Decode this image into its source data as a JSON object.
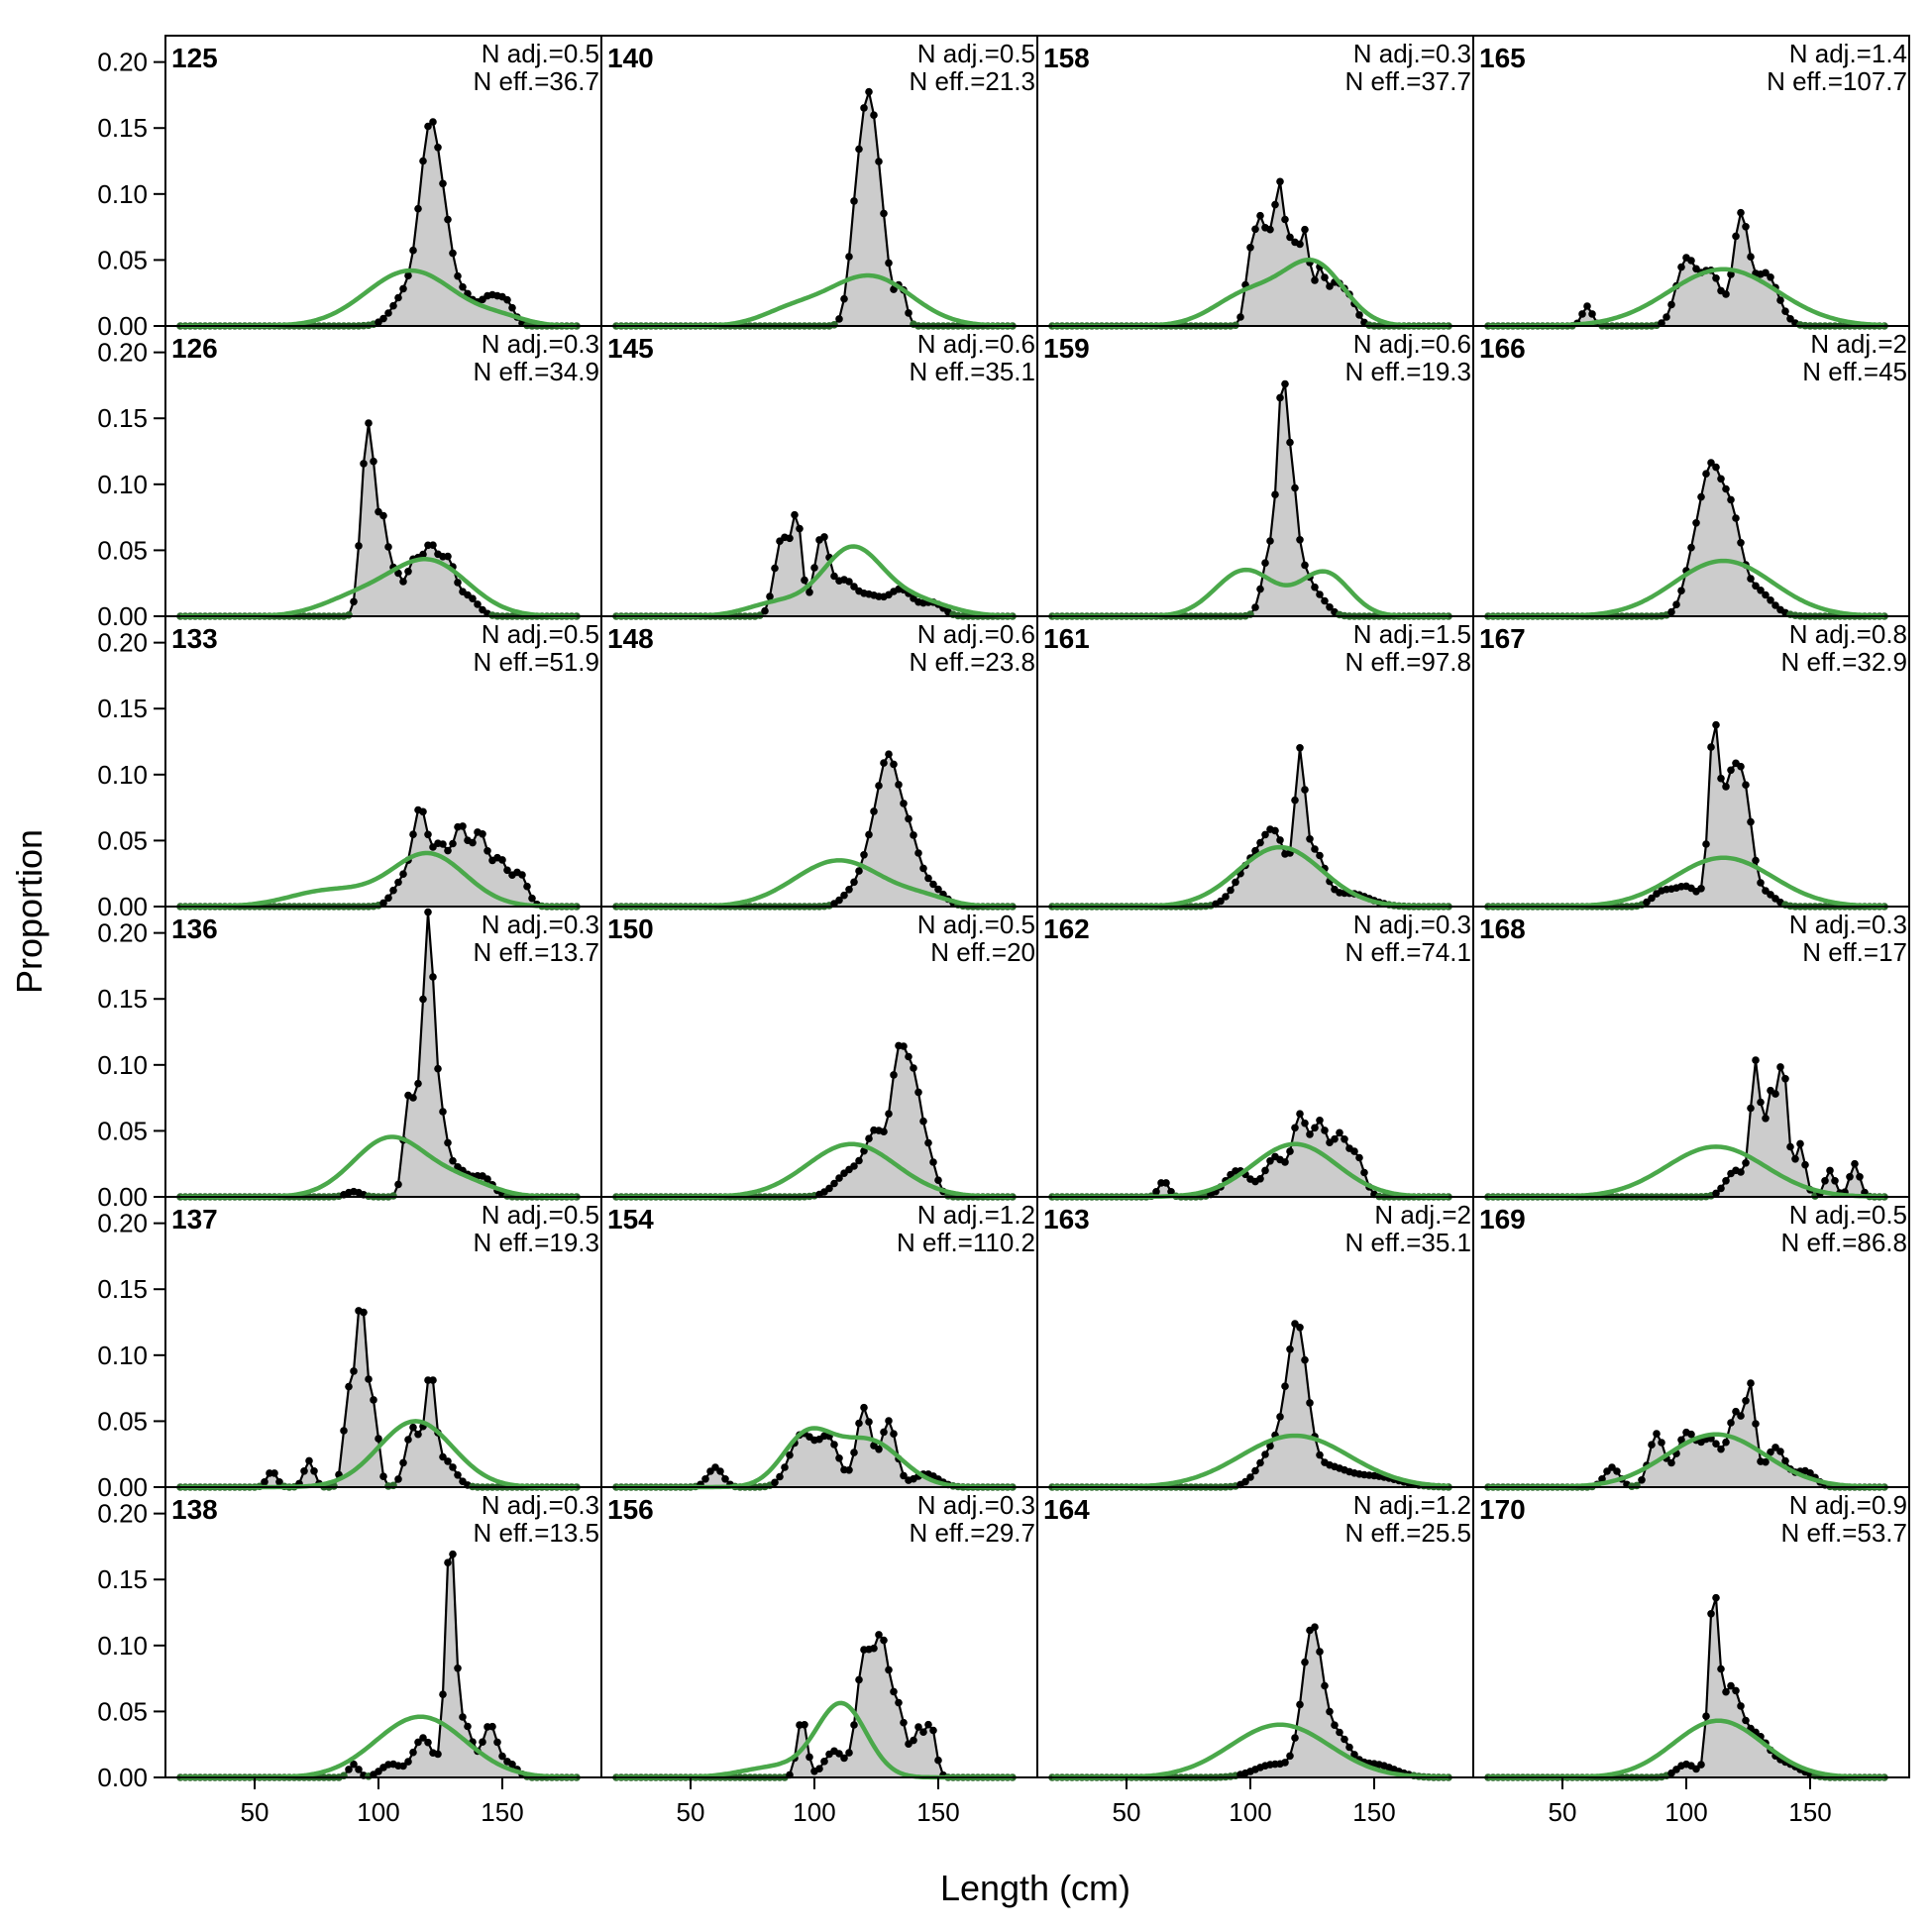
{
  "chart_data": {
    "type": "area",
    "xlabel": "Length (cm)",
    "ylabel": "Proportion",
    "xlim": [
      14,
      190
    ],
    "ylim": [
      0,
      0.22
    ],
    "x_ticks": [
      50,
      100,
      150
    ],
    "y_ticks": [
      0.0,
      0.05,
      0.1,
      0.15,
      0.2
    ],
    "y_tick_labels": [
      "0.00",
      "0.05",
      "0.10",
      "0.15",
      "0.20"
    ],
    "colors": {
      "observed_fill": "#cccccc",
      "observed_line": "#000000",
      "expected": "#4aa84a",
      "zero_line": "#bbbbbb"
    },
    "grid": false,
    "layout": {
      "columns": 4,
      "rows": 6
    },
    "panels": [
      {
        "id": "125",
        "n_adj": "N adj.=0.5",
        "n_eff": "N eff.=36.7",
        "peaks": [
          [
            113,
            0.03,
            6
          ],
          [
            118,
            0.06,
            3
          ],
          [
            122,
            0.105,
            3
          ],
          [
            127,
            0.06,
            3
          ],
          [
            134,
            0.025,
            4
          ],
          [
            145,
            0.022,
            4
          ],
          [
            152,
            0.015,
            3
          ]
        ],
        "exp": [
          [
            113,
            0.042,
            18
          ],
          [
            150,
            0.005,
            10
          ]
        ]
      },
      {
        "id": "140",
        "n_adj": "N adj.=0.5",
        "n_eff": "N eff.=21.3",
        "peaks": [
          [
            117,
            0.08,
            3
          ],
          [
            122,
            0.14,
            3
          ],
          [
            127,
            0.07,
            3
          ],
          [
            135,
            0.03,
            2
          ]
        ],
        "exp": [
          [
            90,
            0.01,
            12
          ],
          [
            122,
            0.038,
            17
          ]
        ]
      },
      {
        "id": "158",
        "n_adj": "N adj.=0.3",
        "n_eff": "N eff.=37.7",
        "peaks": [
          [
            100,
            0.05,
            2
          ],
          [
            104,
            0.07,
            2
          ],
          [
            108,
            0.05,
            2
          ],
          [
            112,
            0.1,
            2
          ],
          [
            117,
            0.06,
            2
          ],
          [
            122,
            0.07,
            2
          ],
          [
            128,
            0.04,
            2
          ],
          [
            134,
            0.03,
            3
          ],
          [
            140,
            0.02,
            3
          ]
        ],
        "exp": [
          [
            100,
            0.025,
            14
          ],
          [
            126,
            0.045,
            12
          ]
        ]
      },
      {
        "id": "165",
        "n_adj": "N adj.=1.4",
        "n_eff": "N eff.=107.7",
        "peaks": [
          [
            60,
            0.015,
            2
          ],
          [
            100,
            0.05,
            4
          ],
          [
            110,
            0.04,
            4
          ],
          [
            122,
            0.08,
            3
          ],
          [
            132,
            0.04,
            5
          ]
        ],
        "exp": [
          [
            115,
            0.043,
            22
          ]
        ]
      },
      {
        "id": "126",
        "n_adj": "N adj.=0.3",
        "n_eff": "N eff.=34.9",
        "peaks": [
          [
            94,
            0.08,
            2
          ],
          [
            97,
            0.11,
            2
          ],
          [
            102,
            0.07,
            2
          ],
          [
            107,
            0.03,
            2
          ],
          [
            114,
            0.04,
            3
          ],
          [
            121,
            0.05,
            3
          ],
          [
            128,
            0.04,
            3
          ],
          [
            136,
            0.015,
            4
          ]
        ],
        "exp": [
          [
            90,
            0.012,
            14
          ],
          [
            120,
            0.042,
            16
          ]
        ]
      },
      {
        "id": "145",
        "n_adj": "N adj.=0.6",
        "n_eff": "N eff.=35.1",
        "peaks": [
          [
            87,
            0.06,
            3
          ],
          [
            93,
            0.07,
            2
          ],
          [
            103,
            0.06,
            3
          ],
          [
            112,
            0.025,
            4
          ],
          [
            122,
            0.015,
            5
          ],
          [
            135,
            0.02,
            5
          ],
          [
            148,
            0.01,
            4
          ]
        ],
        "exp": [
          [
            85,
            0.01,
            12
          ],
          [
            115,
            0.05,
            12
          ],
          [
            140,
            0.012,
            14
          ]
        ]
      },
      {
        "id": "159",
        "n_adj": "N adj.=0.6",
        "n_eff": "N eff.=19.3",
        "peaks": [
          [
            108,
            0.05,
            3
          ],
          [
            113,
            0.16,
            2
          ],
          [
            117,
            0.08,
            2
          ],
          [
            121,
            0.03,
            3
          ],
          [
            127,
            0.015,
            4
          ]
        ],
        "exp": [
          [
            98,
            0.035,
            12
          ],
          [
            130,
            0.033,
            10
          ]
        ]
      },
      {
        "id": "166",
        "n_adj": "N adj.=2",
        "n_eff": "N eff.=45",
        "peaks": [
          [
            103,
            0.04,
            4
          ],
          [
            110,
            0.098,
            4
          ],
          [
            118,
            0.07,
            4
          ],
          [
            128,
            0.02,
            6
          ]
        ],
        "exp": [
          [
            115,
            0.042,
            20
          ]
        ]
      },
      {
        "id": "133",
        "n_adj": "N adj.=0.5",
        "n_eff": "N eff.=51.9",
        "peaks": [
          [
            110,
            0.02,
            4
          ],
          [
            117,
            0.07,
            3
          ],
          [
            125,
            0.045,
            3
          ],
          [
            133,
            0.06,
            3
          ],
          [
            141,
            0.055,
            3
          ],
          [
            149,
            0.035,
            3
          ],
          [
            157,
            0.025,
            3
          ]
        ],
        "exp": [
          [
            80,
            0.012,
            16
          ],
          [
            120,
            0.04,
            15
          ]
        ]
      },
      {
        "id": "148",
        "n_adj": "N adj.=0.6",
        "n_eff": "N eff.=23.8",
        "peaks": [
          [
            115,
            0.01,
            4
          ],
          [
            123,
            0.04,
            4
          ],
          [
            130,
            0.1,
            4
          ],
          [
            138,
            0.05,
            4
          ],
          [
            147,
            0.015,
            5
          ]
        ],
        "exp": [
          [
            110,
            0.035,
            18
          ],
          [
            145,
            0.005,
            10
          ]
        ]
      },
      {
        "id": "161",
        "n_adj": "N adj.=1.5",
        "n_eff": "N eff.=97.8",
        "peaks": [
          [
            100,
            0.03,
            6
          ],
          [
            110,
            0.05,
            5
          ],
          [
            120,
            0.1,
            2
          ],
          [
            126,
            0.04,
            4
          ],
          [
            140,
            0.01,
            8
          ]
        ],
        "exp": [
          [
            112,
            0.045,
            17
          ]
        ]
      },
      {
        "id": "167",
        "n_adj": "N adj.=0.8",
        "n_eff": "N eff.=32.9",
        "peaks": [
          [
            90,
            0.01,
            4
          ],
          [
            100,
            0.015,
            5
          ],
          [
            111,
            0.12,
            2
          ],
          [
            118,
            0.095,
            4
          ],
          [
            124,
            0.06,
            3
          ],
          [
            132,
            0.01,
            4
          ]
        ],
        "exp": [
          [
            115,
            0.037,
            20
          ]
        ]
      },
      {
        "id": "136",
        "n_adj": "N adj.=0.3",
        "n_eff": "N eff.=13.7",
        "peaks": [
          [
            90,
            0.004,
            3
          ],
          [
            112,
            0.07,
            2
          ],
          [
            116,
            0.05,
            2
          ],
          [
            120,
            0.18,
            2
          ],
          [
            124,
            0.07,
            3
          ],
          [
            132,
            0.02,
            4
          ],
          [
            142,
            0.015,
            4
          ]
        ],
        "exp": [
          [
            105,
            0.045,
            15
          ],
          [
            135,
            0.01,
            12
          ]
        ]
      },
      {
        "id": "150",
        "n_adj": "N adj.=0.5",
        "n_eff": "N eff.=20",
        "peaks": [
          [
            115,
            0.02,
            6
          ],
          [
            125,
            0.045,
            4
          ],
          [
            134,
            0.1,
            3
          ],
          [
            140,
            0.08,
            3
          ],
          [
            146,
            0.03,
            3
          ]
        ],
        "exp": [
          [
            115,
            0.04,
            18
          ]
        ]
      },
      {
        "id": "162",
        "n_adj": "N adj.=0.3",
        "n_eff": "N eff.=74.1",
        "peaks": [
          [
            65,
            0.012,
            2
          ],
          [
            95,
            0.02,
            5
          ],
          [
            110,
            0.03,
            4
          ],
          [
            120,
            0.06,
            3
          ],
          [
            128,
            0.055,
            3
          ],
          [
            136,
            0.045,
            3
          ],
          [
            143,
            0.03,
            3
          ]
        ],
        "exp": [
          [
            118,
            0.04,
            17
          ]
        ]
      },
      {
        "id": "168",
        "n_adj": "N adj.=0.3",
        "n_eff": "N eff.=17",
        "peaks": [
          [
            120,
            0.02,
            4
          ],
          [
            128,
            0.1,
            2
          ],
          [
            134,
            0.075,
            2
          ],
          [
            139,
            0.1,
            2
          ],
          [
            146,
            0.04,
            2
          ],
          [
            158,
            0.02,
            2
          ],
          [
            168,
            0.025,
            2
          ]
        ],
        "exp": [
          [
            112,
            0.038,
            20
          ]
        ]
      },
      {
        "id": "137",
        "n_adj": "N adj.=0.5",
        "n_eff": "N eff.=19.3",
        "peaks": [
          [
            57,
            0.012,
            2
          ],
          [
            72,
            0.02,
            2
          ],
          [
            88,
            0.07,
            2
          ],
          [
            93,
            0.14,
            2
          ],
          [
            98,
            0.06,
            2
          ],
          [
            114,
            0.045,
            3
          ],
          [
            121,
            0.08,
            2
          ],
          [
            127,
            0.02,
            4
          ]
        ],
        "exp": [
          [
            115,
            0.05,
            15
          ]
        ]
      },
      {
        "id": "154",
        "n_adj": "N adj.=1.2",
        "n_eff": "N eff.=110.2",
        "peaks": [
          [
            60,
            0.015,
            3
          ],
          [
            95,
            0.04,
            5
          ],
          [
            106,
            0.035,
            4
          ],
          [
            120,
            0.06,
            3
          ],
          [
            130,
            0.05,
            3
          ],
          [
            145,
            0.01,
            5
          ]
        ],
        "exp": [
          [
            97,
            0.038,
            10
          ],
          [
            122,
            0.035,
            13
          ]
        ]
      },
      {
        "id": "163",
        "n_adj": "N adj.=2",
        "n_eff": "N eff.=35.1",
        "peaks": [
          [
            110,
            0.03,
            6
          ],
          [
            119,
            0.11,
            4
          ],
          [
            130,
            0.015,
            8
          ],
          [
            150,
            0.008,
            10
          ]
        ],
        "exp": [
          [
            118,
            0.039,
            22
          ]
        ]
      },
      {
        "id": "169",
        "n_adj": "N adj.=0.5",
        "n_eff": "N eff.=86.8",
        "peaks": [
          [
            70,
            0.015,
            3
          ],
          [
            88,
            0.04,
            3
          ],
          [
            100,
            0.04,
            4
          ],
          [
            110,
            0.035,
            4
          ],
          [
            120,
            0.055,
            3
          ],
          [
            126,
            0.07,
            2
          ],
          [
            136,
            0.03,
            4
          ],
          [
            148,
            0.012,
            4
          ]
        ],
        "exp": [
          [
            112,
            0.04,
            20
          ]
        ]
      },
      {
        "id": "138",
        "n_adj": "N adj.=0.3",
        "n_eff": "N eff.=13.5",
        "peaks": [
          [
            90,
            0.01,
            2
          ],
          [
            105,
            0.01,
            4
          ],
          [
            118,
            0.03,
            4
          ],
          [
            129,
            0.18,
            2
          ],
          [
            135,
            0.04,
            3
          ],
          [
            145,
            0.04,
            3
          ],
          [
            153,
            0.01,
            3
          ]
        ],
        "exp": [
          [
            117,
            0.046,
            18
          ]
        ]
      },
      {
        "id": "156",
        "n_adj": "N adj.=0.3",
        "n_eff": "N eff.=29.7",
        "peaks": [
          [
            95,
            0.045,
            2
          ],
          [
            108,
            0.02,
            4
          ],
          [
            120,
            0.09,
            3
          ],
          [
            127,
            0.1,
            3
          ],
          [
            134,
            0.05,
            3
          ],
          [
            142,
            0.035,
            2
          ],
          [
            147,
            0.04,
            2
          ]
        ],
        "exp": [
          [
            85,
            0.008,
            14
          ],
          [
            111,
            0.055,
            10
          ]
        ]
      },
      {
        "id": "164",
        "n_adj": "N adj.=1.2",
        "n_eff": "N eff.=25.5",
        "peaks": [
          [
            110,
            0.01,
            8
          ],
          [
            125,
            0.11,
            4
          ],
          [
            135,
            0.03,
            5
          ],
          [
            150,
            0.01,
            8
          ]
        ],
        "exp": [
          [
            112,
            0.04,
            20
          ]
        ]
      },
      {
        "id": "170",
        "n_adj": "N adj.=0.9",
        "n_eff": "N eff.=53.7",
        "peaks": [
          [
            100,
            0.01,
            4
          ],
          [
            111,
            0.13,
            2
          ],
          [
            118,
            0.065,
            4
          ],
          [
            128,
            0.03,
            5
          ],
          [
            140,
            0.01,
            6
          ]
        ],
        "exp": [
          [
            113,
            0.043,
            18
          ]
        ]
      }
    ]
  }
}
